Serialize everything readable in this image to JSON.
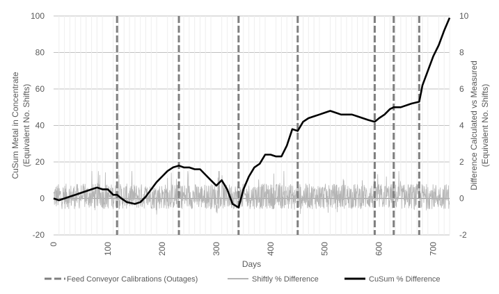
{
  "chart_data": {
    "type": "line",
    "xlabel": "Days",
    "ylabel_left": "CuSum Metal in Concentrate (Equivalent No. Shifts)",
    "ylabel_left_lines": [
      "CuSum Metal in Concentrate",
      "(Equivalent No. Shifts)"
    ],
    "ylabel_right": "Difference Calculated vs Measured (Equivalent No. Shifts)",
    "ylabel_right_lines": [
      "Difference Calculated vs Measured",
      "(Equivalent No. Shifts)"
    ],
    "xlim": [
      0,
      730
    ],
    "ylim_left": [
      -20,
      100
    ],
    "ylim_right": [
      -2,
      10
    ],
    "x_ticks": [
      "0",
      "100",
      "200",
      "300",
      "400",
      "500",
      "600",
      "700"
    ],
    "y_ticks_left": [
      "-20",
      "0",
      "20",
      "40",
      "60",
      "80",
      "100"
    ],
    "y_ticks_right": [
      "-2",
      "0",
      "2",
      "4",
      "6",
      "8",
      "10"
    ],
    "grid": "horizontal",
    "legend_position": "bottom",
    "colors": {
      "cusum": "#000000",
      "shiftly": "#b4b4b4",
      "calibration": "#7f7f7f",
      "grid": "#bfbfbf",
      "text": "#595959"
    },
    "calibration_days": [
      117,
      231,
      341,
      450,
      592,
      627,
      674
    ],
    "series": [
      {
        "name": "CuSum % Difference",
        "axis": "left",
        "x": [
          0,
          10,
          20,
          30,
          40,
          50,
          60,
          70,
          80,
          90,
          100,
          110,
          117,
          125,
          135,
          150,
          160,
          170,
          180,
          190,
          200,
          210,
          220,
          231,
          240,
          250,
          260,
          270,
          280,
          290,
          300,
          310,
          320,
          330,
          341,
          350,
          360,
          370,
          380,
          390,
          400,
          410,
          420,
          430,
          440,
          450,
          460,
          470,
          480,
          490,
          500,
          510,
          520,
          530,
          540,
          550,
          560,
          570,
          580,
          592,
          600,
          610,
          620,
          627,
          640,
          660,
          674,
          680,
          690,
          700,
          710,
          720,
          730
        ],
        "y": [
          0,
          -1,
          0,
          1,
          2,
          3,
          4,
          5,
          6,
          5,
          5,
          2,
          2,
          0,
          -2,
          -3,
          -2,
          1,
          5,
          9,
          12,
          15,
          17,
          18,
          17,
          17,
          16,
          16,
          13,
          10,
          7,
          10,
          5,
          -3,
          -5,
          5,
          12,
          17,
          19,
          24,
          24,
          23,
          23,
          29,
          38,
          37,
          42,
          44,
          45,
          46,
          47,
          48,
          47,
          46,
          46,
          46,
          45,
          44,
          43,
          42,
          44,
          46,
          49,
          50,
          50,
          52,
          53,
          62,
          70,
          78,
          84,
          92,
          99
        ]
      },
      {
        "name": "Shiftly % Difference",
        "axis": "right",
        "note": "high-frequency per-shift series oscillating around 0, typically between -1 and +1.5 (right axis)",
        "range": [
          -1.5,
          1.5
        ]
      }
    ],
    "legend": [
      {
        "label": "Feed Conveyor Calibrations (Outages)",
        "style": "dashed-gray"
      },
      {
        "label": "Shiftly % Difference",
        "style": "solid-lightgray"
      },
      {
        "label": "CuSum % Difference",
        "style": "solid-black"
      }
    ]
  }
}
